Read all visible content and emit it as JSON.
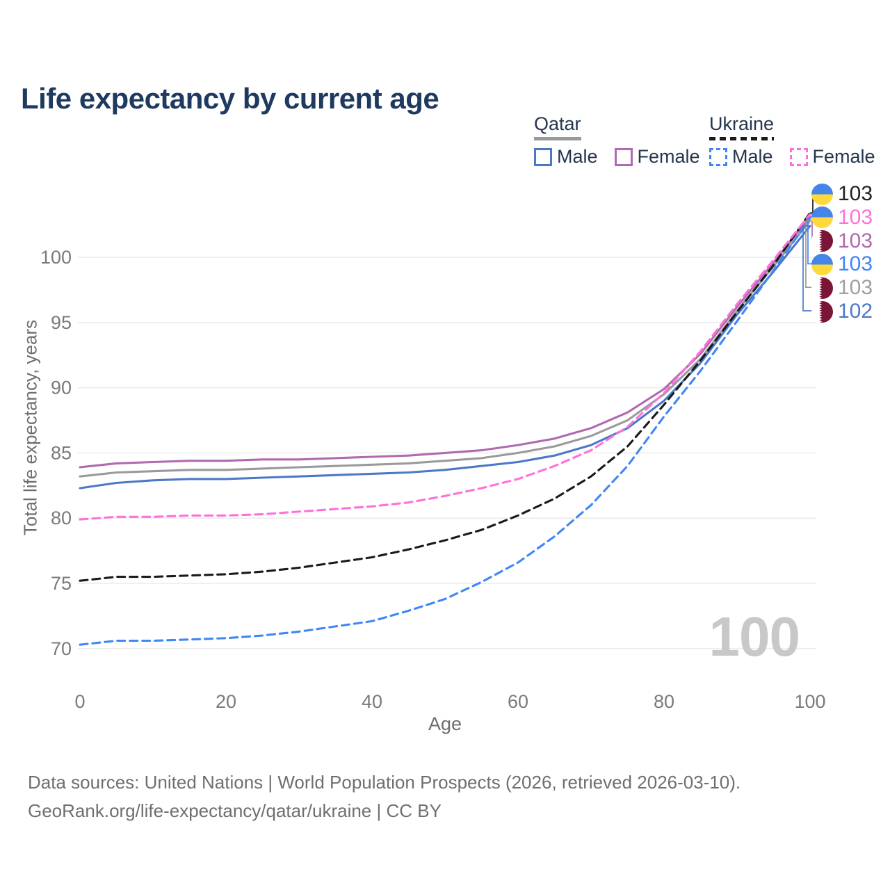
{
  "title": "Life expectancy by current age",
  "legend": {
    "qatar": {
      "label": "Qatar",
      "male": "Male",
      "female": "Female"
    },
    "ukraine": {
      "label": "Ukraine",
      "male": "Male",
      "female": "Female"
    }
  },
  "watermark_age": "100",
  "flags": {
    "ukraine": {
      "top": "#4585e8",
      "bottom": "#ffd83c"
    },
    "qatar": {
      "field": "#ffffff",
      "band": "#7a1538"
    }
  },
  "callouts": [
    {
      "flag": "ukraine",
      "series": "ukraine-combined",
      "value": "103",
      "color": "#222222"
    },
    {
      "flag": "ukraine",
      "series": "ukraine-female",
      "value": "103",
      "color": "#ff70db"
    },
    {
      "flag": "qatar",
      "series": "qatar-female",
      "value": "103",
      "color": "#b06ab0"
    },
    {
      "flag": "ukraine",
      "series": "ukraine-male",
      "value": "103",
      "color": "#4285f4"
    },
    {
      "flag": "qatar",
      "series": "qatar-combined",
      "value": "103",
      "color": "#a0a0a0"
    },
    {
      "flag": "qatar",
      "series": "qatar-male",
      "value": "102",
      "color": "#4c79c7"
    }
  ],
  "footer": {
    "line1": "Data sources: United Nations | World Population Prospects (2026, retrieved 2026-03-10).",
    "line2": "GeoRank.org/life-expectancy/qatar/ukraine | CC BY"
  },
  "chart_data": {
    "type": "line",
    "title": "Life expectancy by current age",
    "xlabel": "Age",
    "ylabel": "Total life expectancy, years",
    "xlim": [
      0,
      100
    ],
    "ylim": [
      68,
      104
    ],
    "xticks": [
      0,
      20,
      40,
      60,
      80,
      100
    ],
    "yticks": [
      70,
      75,
      80,
      85,
      90,
      95,
      100
    ],
    "grid": "horizontal",
    "legend_position": "top-right",
    "x": [
      0,
      5,
      10,
      15,
      20,
      25,
      30,
      35,
      40,
      45,
      50,
      55,
      60,
      65,
      70,
      75,
      80,
      85,
      90,
      95,
      100
    ],
    "series": [
      {
        "id": "qatar-combined",
        "country": "Qatar",
        "sex": "Combined",
        "color": "#9a9a9a",
        "line_style": "solid",
        "values": [
          83.2,
          83.5,
          83.6,
          83.7,
          83.7,
          83.8,
          83.9,
          84.0,
          84.1,
          84.2,
          84.4,
          84.6,
          85.0,
          85.5,
          86.3,
          87.5,
          89.5,
          92.2,
          95.9,
          99.3,
          102.8
        ]
      },
      {
        "id": "qatar-male",
        "country": "Qatar",
        "sex": "Male",
        "color": "#4c79c7",
        "line_style": "solid",
        "values": [
          82.3,
          82.7,
          82.9,
          83.0,
          83.0,
          83.1,
          83.2,
          83.3,
          83.4,
          83.5,
          83.7,
          84.0,
          84.3,
          84.8,
          85.6,
          86.9,
          89.0,
          91.9,
          95.6,
          98.9,
          102.4
        ]
      },
      {
        "id": "qatar-female",
        "country": "Qatar",
        "sex": "Female",
        "color": "#b06ab0",
        "line_style": "solid",
        "values": [
          83.9,
          84.2,
          84.3,
          84.4,
          84.4,
          84.5,
          84.5,
          84.6,
          84.7,
          84.8,
          85.0,
          85.2,
          85.6,
          86.1,
          86.9,
          88.1,
          89.9,
          92.6,
          96.2,
          99.6,
          103.1
        ]
      },
      {
        "id": "ukraine-male",
        "country": "Ukraine",
        "sex": "Male",
        "color": "#3f86f7",
        "line_style": "dashed",
        "values": [
          70.3,
          70.6,
          70.6,
          70.7,
          70.8,
          71.0,
          71.3,
          71.7,
          72.1,
          72.9,
          73.8,
          75.1,
          76.6,
          78.6,
          81.0,
          84.0,
          87.8,
          91.3,
          95.1,
          99.0,
          103.0
        ]
      },
      {
        "id": "ukraine-combined",
        "country": "Ukraine",
        "sex": "Combined",
        "color": "#1a1a1a",
        "line_style": "dashed",
        "values": [
          75.2,
          75.5,
          75.5,
          75.6,
          75.7,
          75.9,
          76.2,
          76.6,
          77.0,
          77.6,
          78.3,
          79.1,
          80.2,
          81.5,
          83.2,
          85.5,
          88.7,
          92.1,
          95.8,
          99.4,
          103.4
        ]
      },
      {
        "id": "ukraine-female",
        "country": "Ukraine",
        "sex": "Female",
        "color": "#ff70db",
        "line_style": "dashed",
        "values": [
          79.9,
          80.1,
          80.1,
          80.2,
          80.2,
          80.3,
          80.5,
          80.7,
          80.9,
          81.2,
          81.7,
          82.3,
          83.0,
          84.0,
          85.2,
          87.0,
          89.6,
          92.8,
          96.4,
          99.8,
          103.3
        ]
      }
    ]
  }
}
